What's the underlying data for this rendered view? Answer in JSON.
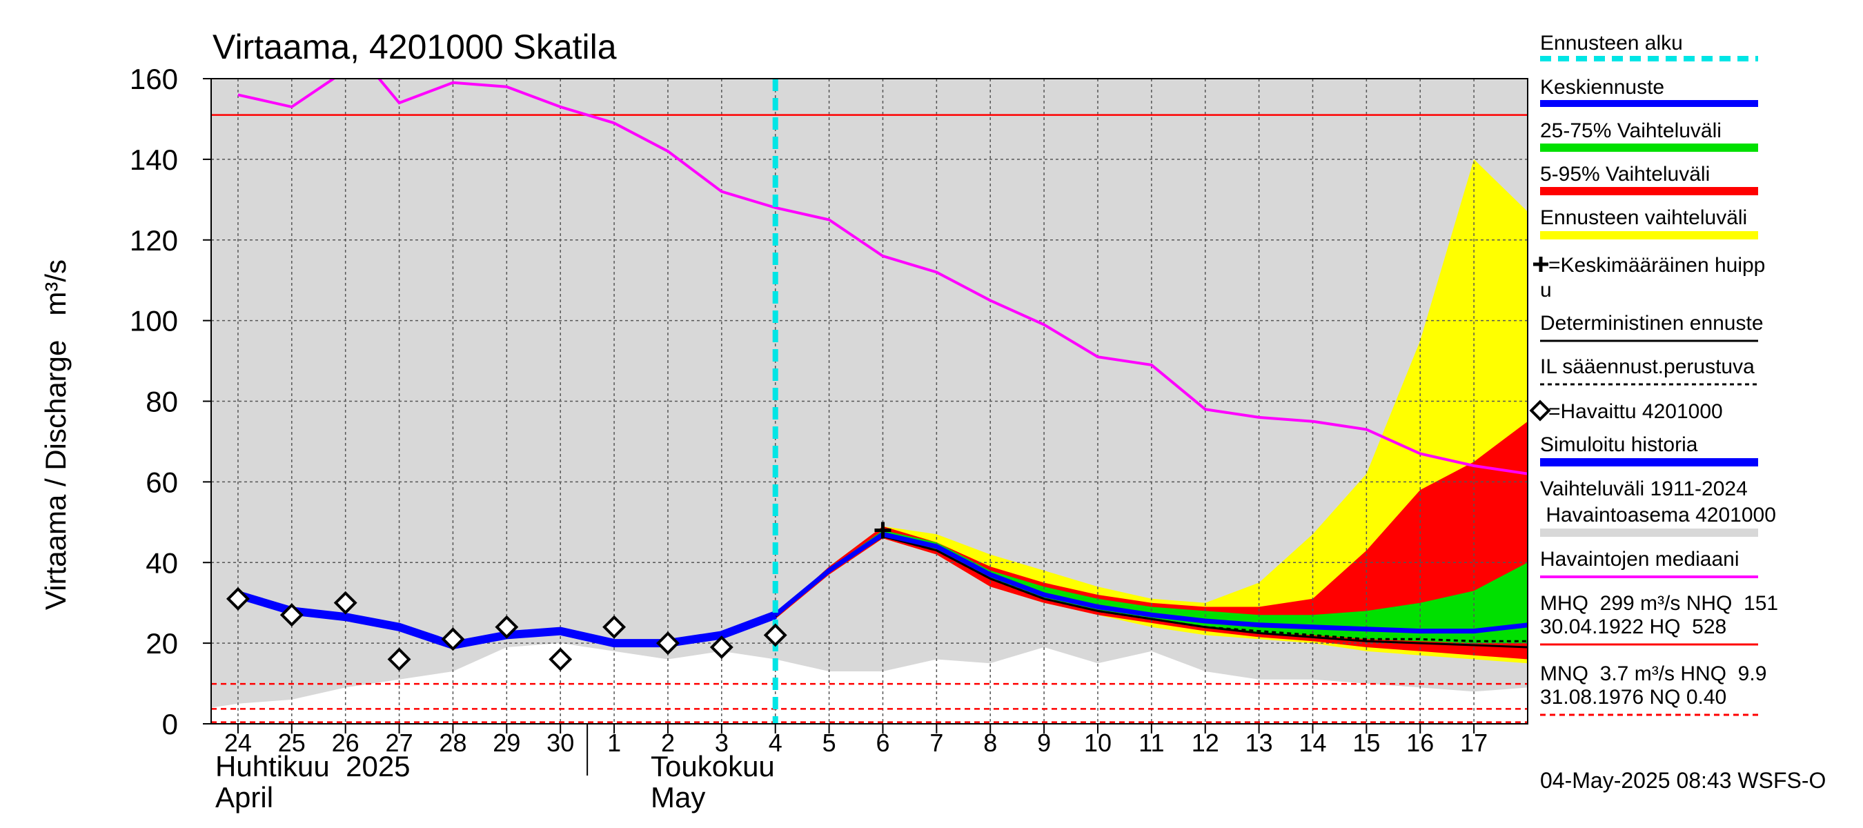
{
  "chart_data": {
    "type": "area",
    "title": "Virtaama, 4201000 Skatila",
    "ylabel": "Virtaama / Discharge   m³/s",
    "ylim": [
      0,
      160
    ],
    "y_ticks": [
      "0",
      "20",
      "40",
      "60",
      "80",
      "100",
      "120",
      "140",
      "160"
    ],
    "x_range": [
      "2025-04-23T12",
      "2025-05-18T00"
    ],
    "x_ticks": [
      {
        "date": "2025-04-24",
        "label": "24"
      },
      {
        "date": "2025-04-25",
        "label": "25"
      },
      {
        "date": "2025-04-26",
        "label": "26"
      },
      {
        "date": "2025-04-27",
        "label": "27"
      },
      {
        "date": "2025-04-28",
        "label": "28"
      },
      {
        "date": "2025-04-29",
        "label": "29"
      },
      {
        "date": "2025-04-30",
        "label": "30"
      },
      {
        "date": "2025-05-01",
        "label": "1"
      },
      {
        "date": "2025-05-02",
        "label": "2"
      },
      {
        "date": "2025-05-03",
        "label": "3"
      },
      {
        "date": "2025-05-04",
        "label": "4"
      },
      {
        "date": "2025-05-05",
        "label": "5"
      },
      {
        "date": "2025-05-06",
        "label": "6"
      },
      {
        "date": "2025-05-07",
        "label": "7"
      },
      {
        "date": "2025-05-08",
        "label": "8"
      },
      {
        "date": "2025-05-09",
        "label": "9"
      },
      {
        "date": "2025-05-10",
        "label": "10"
      },
      {
        "date": "2025-05-11",
        "label": "11"
      },
      {
        "date": "2025-05-12",
        "label": "12"
      },
      {
        "date": "2025-05-13",
        "label": "13"
      },
      {
        "date": "2025-05-14",
        "label": "14"
      },
      {
        "date": "2025-05-15",
        "label": "15"
      },
      {
        "date": "2025-05-16",
        "label": "16"
      },
      {
        "date": "2025-05-17",
        "label": "17"
      }
    ],
    "month_labels": {
      "april_fi": "Huhtikuu  2025",
      "april_en": "April",
      "may_fi": "Toukokuu",
      "may_en": "May"
    },
    "forecast_start": "2025-05-04",
    "grid": true,
    "legend_position": "right",
    "history_range": {
      "name": "Vaihteluväli 1911-2024",
      "x": [
        "2025-04-23T12",
        "2025-04-24",
        "2025-04-25",
        "2025-04-26",
        "2025-04-27",
        "2025-04-28",
        "2025-04-29",
        "2025-04-30",
        "2025-05-01",
        "2025-05-02",
        "2025-05-03",
        "2025-05-04",
        "2025-05-05",
        "2025-05-06",
        "2025-05-07",
        "2025-05-08",
        "2025-05-09",
        "2025-05-10",
        "2025-05-11",
        "2025-05-12",
        "2025-05-13",
        "2025-05-14",
        "2025-05-15",
        "2025-05-16",
        "2025-05-17",
        "2025-05-18"
      ],
      "low": [
        4,
        5,
        6,
        9,
        11,
        13,
        19,
        20,
        18,
        16,
        18,
        16,
        13,
        13,
        16,
        15,
        19,
        15,
        18,
        13,
        11,
        11,
        10,
        9,
        8,
        9
      ],
      "high": [
        160,
        160,
        160,
        160,
        160,
        160,
        160,
        160,
        160,
        160,
        160,
        160,
        160,
        160,
        160,
        160,
        160,
        160,
        160,
        160,
        160,
        160,
        160,
        160,
        160,
        160
      ]
    },
    "observed": {
      "name": "=Havaittu 4201000",
      "x": [
        "2025-04-24",
        "2025-04-25",
        "2025-04-26",
        "2025-04-27",
        "2025-04-28",
        "2025-04-29",
        "2025-04-30",
        "2025-05-01",
        "2025-05-02",
        "2025-05-03",
        "2025-05-04"
      ],
      "y": [
        31,
        27,
        30,
        16,
        21,
        24,
        16,
        24,
        20,
        19,
        22
      ]
    },
    "simulated_history": {
      "name": "Simuloitu historia",
      "x": [
        "2025-04-24",
        "2025-04-25",
        "2025-04-26",
        "2025-04-27",
        "2025-04-28",
        "2025-04-29",
        "2025-04-30",
        "2025-05-01",
        "2025-05-02",
        "2025-05-03",
        "2025-05-04"
      ],
      "y": [
        32,
        28,
        26.5,
        24,
        19.5,
        22,
        23,
        20,
        20,
        22,
        27
      ]
    },
    "median_observed": {
      "name": "Havaintojen mediaani",
      "x": [
        "2025-04-24",
        "2025-04-25",
        "2025-04-26",
        "2025-04-26T12",
        "2025-04-27",
        "2025-04-28",
        "2025-04-29",
        "2025-04-30",
        "2025-05-01",
        "2025-05-02",
        "2025-05-03",
        "2025-05-04",
        "2025-05-05",
        "2025-05-06",
        "2025-05-07",
        "2025-05-08",
        "2025-05-09",
        "2025-05-10",
        "2025-05-11",
        "2025-05-12",
        "2025-05-13",
        "2025-05-14",
        "2025-05-15",
        "2025-05-16",
        "2025-05-17",
        "2025-05-18"
      ],
      "y": [
        156,
        153,
        162,
        162,
        154,
        159,
        158,
        153,
        149,
        142,
        132,
        128,
        125,
        116,
        112,
        105,
        99,
        91,
        89,
        78,
        76,
        75,
        73,
        67,
        64,
        62
      ]
    },
    "forecast_x": [
      "2025-05-04",
      "2025-05-05",
      "2025-05-06",
      "2025-05-07",
      "2025-05-08",
      "2025-05-09",
      "2025-05-10",
      "2025-05-11",
      "2025-05-12",
      "2025-05-13",
      "2025-05-14",
      "2025-05-15",
      "2025-05-16",
      "2025-05-17",
      "2025-05-18"
    ],
    "forecast_range": {
      "name": "Ennusteen vaihteluväli",
      "low": [
        26,
        37,
        46,
        42,
        34,
        30,
        27,
        24,
        22,
        21,
        20,
        18,
        17,
        16,
        15
      ],
      "high": [
        27,
        39,
        49,
        47,
        42,
        38,
        34,
        31,
        30,
        35,
        47,
        62,
        95,
        140,
        127
      ]
    },
    "band_5_95": {
      "name": "5-95% Vaihteluväli",
      "low": [
        26,
        37,
        46,
        42,
        34,
        30,
        27,
        25,
        23,
        21.5,
        20.5,
        19,
        18,
        17,
        16
      ],
      "high": [
        27,
        39,
        49,
        45,
        39,
        35,
        32,
        30,
        29,
        29,
        31,
        43,
        58,
        65,
        75
      ]
    },
    "band_25_75": {
      "name": "25-75% Vaihteluväli",
      "low": [
        26.5,
        38,
        47,
        43,
        36,
        31,
        28,
        26,
        24,
        22.5,
        22,
        21,
        20.5,
        20,
        20
      ],
      "high": [
        27,
        38.5,
        48,
        45,
        38,
        34,
        31,
        29,
        28,
        27,
        27,
        28,
        30,
        33,
        40
      ]
    },
    "mean_forecast": {
      "name": "Keskiennuste",
      "y": [
        27,
        38,
        47,
        44,
        37,
        32,
        29,
        27,
        25.5,
        24.5,
        24,
        23.5,
        23,
        23,
        24.5
      ]
    },
    "deterministic": {
      "name": "Deterministinen ennuste",
      "y": [
        26.5,
        38,
        46.5,
        43,
        36,
        31,
        28,
        26,
        24,
        22.5,
        21.5,
        20.5,
        20,
        19.5,
        19
      ]
    },
    "il_forecast": {
      "name": "IL sääennust.perustuva",
      "y": [
        26.5,
        38,
        46.5,
        43,
        36,
        31,
        28,
        26,
        24,
        23,
        22,
        21,
        21,
        20.5,
        20.5
      ]
    },
    "mean_peak": {
      "name": "=Keskimääräinen huippu",
      "x": "2025-05-06",
      "y": 48
    },
    "reference_lines": [
      {
        "value": 151,
        "color": "#ff0000",
        "style": "solid"
      },
      {
        "value": 9.9,
        "color": "#ff0000",
        "style": "dashed"
      },
      {
        "value": 3.7,
        "color": "#ff0000",
        "style": "dashed"
      },
      {
        "value": 0.4,
        "color": "#ff0000",
        "style": "dashed"
      }
    ],
    "colors": {
      "history_range": "#d8d8d8",
      "forecast_range": "#ffff00",
      "band_5_95": "#ff0000",
      "band_25_75": "#00e000",
      "mean": "#0000ff",
      "median": "#ff00ff",
      "forecast_start": "#00e5e5",
      "reference": "#ff0000",
      "grid": "#555555"
    }
  },
  "legend": {
    "forecast_start": "Ennusteen alku",
    "mean": "Keskiennuste",
    "band_25_75": "25-75% Vaihteluväli",
    "band_5_95": "5-95% Vaihteluväli",
    "forecast_range": "Ennusteen vaihteluväli",
    "peak_line1": "=Keskimääräinen huipp",
    "peak_line2": "u",
    "deterministic": "Deterministinen ennuste",
    "il_forecast": "IL sääennust.perustuva",
    "observed": "=Havaittu 4201000",
    "simulated": "Simuloitu historia",
    "history_range_line1": "Vaihteluväli 1911-2024",
    "history_range_line2": " Havaintoasema 4201000",
    "median": "Havaintojen mediaani",
    "mhq_line1": "MHQ  299 m³/s NHQ  151",
    "mhq_line2": "30.04.1922 HQ  528",
    "mnq_line1": "MNQ  3.7 m³/s HNQ  9.9",
    "mnq_line2": "31.08.1976 NQ 0.40"
  },
  "footer": {
    "timestamp": "04-May-2025 08:43 WSFS-O"
  }
}
